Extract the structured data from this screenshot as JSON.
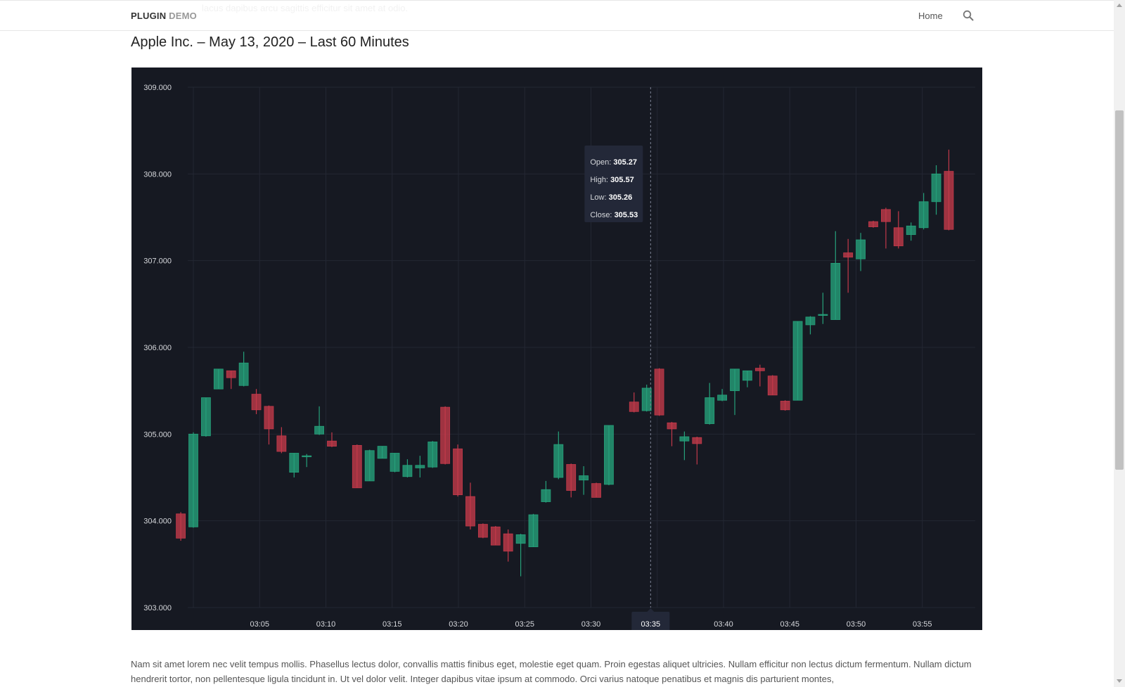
{
  "header": {
    "ghost_text": "lacus dapibus arcu sagittis efficitur sit amet at odio.",
    "brand_bold": "PLUGIN",
    "brand_light": "DEMO",
    "nav_home": "Home",
    "search_icon": "search-icon"
  },
  "page": {
    "title": "Apple Inc. – May 13, 2020 – Last 60 Minutes",
    "paragraph": "Nam sit amet lorem nec velit tempus mollis. Phasellus lectus dolor, convallis mattis finibus eget, molestie eget quam. Proin egestas aliquet ultricies. Nullam efficitur non lectus dictum fermentum. Nullam dictum hendrerit tortor, non pellentesque ligula tincidunt in. Ut vel dolor velit. Integer dapibus vitae ipsum at commodo. Orci varius natoque penatibus et magnis dis parturient montes,"
  },
  "colors": {
    "background": "#161922",
    "grid": "#232733",
    "up": "#26a07a",
    "down": "#c2394a",
    "axis_text": "#d6d8dc",
    "tooltip_bg": "#232838"
  },
  "chart_data": {
    "type": "candlestick",
    "title": "",
    "y_ticks": [
      "303.000",
      "304.000",
      "305.000",
      "306.000",
      "307.000",
      "308.000",
      "309.000"
    ],
    "x_ticks": [
      "03:05",
      "03:10",
      "03:15",
      "03:20",
      "03:25",
      "03:30",
      "03:35",
      "03:40",
      "03:45",
      "03:50",
      "03:55"
    ],
    "x_tick_minutes": [
      5,
      10,
      15,
      20,
      25,
      30,
      35,
      40,
      45,
      50,
      55
    ],
    "ylim": [
      303,
      309
    ],
    "crosshair": {
      "time": "03:35",
      "minute": 34.5
    },
    "tooltip": {
      "open_label": "Open:",
      "open": "305.27",
      "high_label": "High:",
      "high": "305.57",
      "low_label": "Low:",
      "low": "305.26",
      "close_label": "Close:",
      "close": "305.53"
    },
    "candles": [
      {
        "t": -0.95,
        "o": 304.08,
        "h": 304.1,
        "l": 303.77,
        "c": 303.8
      },
      {
        "t": 0.0,
        "o": 303.93,
        "h": 305.02,
        "l": 303.92,
        "c": 305.0
      },
      {
        "t": 0.95,
        "o": 304.98,
        "h": 305.42,
        "l": 304.97,
        "c": 305.42
      },
      {
        "t": 1.9,
        "o": 305.52,
        "h": 305.75,
        "l": 305.52,
        "c": 305.75
      },
      {
        "t": 2.85,
        "o": 305.73,
        "h": 305.73,
        "l": 305.52,
        "c": 305.65
      },
      {
        "t": 3.8,
        "o": 305.56,
        "h": 305.95,
        "l": 305.55,
        "c": 305.82
      },
      {
        "t": 4.75,
        "o": 305.46,
        "h": 305.52,
        "l": 305.23,
        "c": 305.28
      },
      {
        "t": 5.7,
        "o": 305.32,
        "h": 305.33,
        "l": 304.88,
        "c": 305.06
      },
      {
        "t": 6.65,
        "o": 304.98,
        "h": 305.08,
        "l": 304.78,
        "c": 304.8
      },
      {
        "t": 7.6,
        "o": 304.56,
        "h": 304.78,
        "l": 304.5,
        "c": 304.78
      },
      {
        "t": 8.55,
        "o": 304.75,
        "h": 304.77,
        "l": 304.62,
        "c": 304.75
      },
      {
        "t": 9.5,
        "o": 305.0,
        "h": 305.32,
        "l": 304.99,
        "c": 305.09
      },
      {
        "t": 10.45,
        "o": 304.92,
        "h": 305.02,
        "l": 304.85,
        "c": 304.86
      },
      {
        "t": 12.35,
        "o": 304.87,
        "h": 304.88,
        "l": 304.38,
        "c": 304.38
      },
      {
        "t": 13.3,
        "o": 304.46,
        "h": 304.82,
        "l": 304.46,
        "c": 304.81
      },
      {
        "t": 14.25,
        "o": 304.72,
        "h": 304.86,
        "l": 304.72,
        "c": 304.86
      },
      {
        "t": 15.2,
        "o": 304.57,
        "h": 304.78,
        "l": 304.56,
        "c": 304.78
      },
      {
        "t": 16.15,
        "o": 304.51,
        "h": 304.71,
        "l": 304.5,
        "c": 304.64
      },
      {
        "t": 17.1,
        "o": 304.61,
        "h": 304.75,
        "l": 304.5,
        "c": 304.64
      },
      {
        "t": 18.05,
        "o": 304.62,
        "h": 304.92,
        "l": 304.61,
        "c": 304.91
      },
      {
        "t": 19.0,
        "o": 305.31,
        "h": 305.32,
        "l": 304.65,
        "c": 304.66
      },
      {
        "t": 19.95,
        "o": 304.83,
        "h": 304.88,
        "l": 304.28,
        "c": 304.3
      },
      {
        "t": 20.9,
        "o": 304.28,
        "h": 304.44,
        "l": 303.9,
        "c": 303.94
      },
      {
        "t": 21.85,
        "o": 303.96,
        "h": 303.97,
        "l": 303.8,
        "c": 303.81
      },
      {
        "t": 22.8,
        "o": 303.93,
        "h": 303.94,
        "l": 303.72,
        "c": 303.72
      },
      {
        "t": 23.75,
        "o": 303.85,
        "h": 303.9,
        "l": 303.53,
        "c": 303.65
      },
      {
        "t": 24.7,
        "o": 303.74,
        "h": 303.85,
        "l": 303.36,
        "c": 303.84
      },
      {
        "t": 25.65,
        "o": 303.7,
        "h": 304.08,
        "l": 303.7,
        "c": 304.07
      },
      {
        "t": 26.6,
        "o": 304.22,
        "h": 304.46,
        "l": 304.21,
        "c": 304.36
      },
      {
        "t": 27.55,
        "o": 304.5,
        "h": 305.03,
        "l": 304.48,
        "c": 304.88
      },
      {
        "t": 28.5,
        "o": 304.65,
        "h": 304.66,
        "l": 304.27,
        "c": 304.35
      },
      {
        "t": 29.45,
        "o": 304.47,
        "h": 304.63,
        "l": 304.3,
        "c": 304.52
      },
      {
        "t": 30.4,
        "o": 304.43,
        "h": 304.44,
        "l": 304.27,
        "c": 304.27
      },
      {
        "t": 31.35,
        "o": 304.42,
        "h": 305.1,
        "l": 304.41,
        "c": 305.1
      },
      {
        "t": 33.25,
        "o": 305.37,
        "h": 305.48,
        "l": 305.25,
        "c": 305.26
      },
      {
        "t": 34.2,
        "o": 305.27,
        "h": 305.57,
        "l": 305.26,
        "c": 305.53
      },
      {
        "t": 35.15,
        "o": 305.75,
        "h": 305.76,
        "l": 305.21,
        "c": 305.22
      },
      {
        "t": 36.1,
        "o": 305.13,
        "h": 305.14,
        "l": 304.86,
        "c": 305.06
      },
      {
        "t": 37.05,
        "o": 304.92,
        "h": 305.03,
        "l": 304.7,
        "c": 304.97
      },
      {
        "t": 38.0,
        "o": 304.96,
        "h": 304.97,
        "l": 304.65,
        "c": 304.89
      },
      {
        "t": 38.95,
        "o": 305.12,
        "h": 305.59,
        "l": 305.11,
        "c": 305.42
      },
      {
        "t": 39.9,
        "o": 305.39,
        "h": 305.52,
        "l": 305.38,
        "c": 305.45
      },
      {
        "t": 40.85,
        "o": 305.5,
        "h": 305.75,
        "l": 305.22,
        "c": 305.75
      },
      {
        "t": 41.8,
        "o": 305.62,
        "h": 305.73,
        "l": 305.54,
        "c": 305.73
      },
      {
        "t": 42.75,
        "o": 305.76,
        "h": 305.8,
        "l": 305.55,
        "c": 305.73
      },
      {
        "t": 43.7,
        "o": 305.67,
        "h": 305.68,
        "l": 305.45,
        "c": 305.45
      },
      {
        "t": 44.65,
        "o": 305.38,
        "h": 305.39,
        "l": 305.27,
        "c": 305.28
      },
      {
        "t": 45.6,
        "o": 305.39,
        "h": 306.3,
        "l": 305.39,
        "c": 306.3
      },
      {
        "t": 46.55,
        "o": 306.26,
        "h": 306.36,
        "l": 306.15,
        "c": 306.35
      },
      {
        "t": 47.5,
        "o": 306.37,
        "h": 306.63,
        "l": 306.27,
        "c": 306.38
      },
      {
        "t": 48.45,
        "o": 306.32,
        "h": 307.34,
        "l": 306.32,
        "c": 306.97
      },
      {
        "t": 49.4,
        "o": 307.09,
        "h": 307.25,
        "l": 306.63,
        "c": 307.04
      },
      {
        "t": 50.35,
        "o": 307.02,
        "h": 307.32,
        "l": 306.88,
        "c": 307.24
      },
      {
        "t": 51.3,
        "o": 307.45,
        "h": 307.46,
        "l": 307.38,
        "c": 307.39
      },
      {
        "t": 52.25,
        "o": 307.59,
        "h": 307.61,
        "l": 307.14,
        "c": 307.45
      },
      {
        "t": 53.2,
        "o": 307.38,
        "h": 307.57,
        "l": 307.14,
        "c": 307.17
      },
      {
        "t": 54.15,
        "o": 307.3,
        "h": 307.44,
        "l": 307.23,
        "c": 307.4
      },
      {
        "t": 55.1,
        "o": 307.38,
        "h": 307.78,
        "l": 307.36,
        "c": 307.68
      },
      {
        "t": 56.05,
        "o": 307.68,
        "h": 308.1,
        "l": 307.53,
        "c": 308.0
      },
      {
        "t": 57.0,
        "o": 308.03,
        "h": 308.28,
        "l": 307.35,
        "c": 307.36
      }
    ]
  }
}
